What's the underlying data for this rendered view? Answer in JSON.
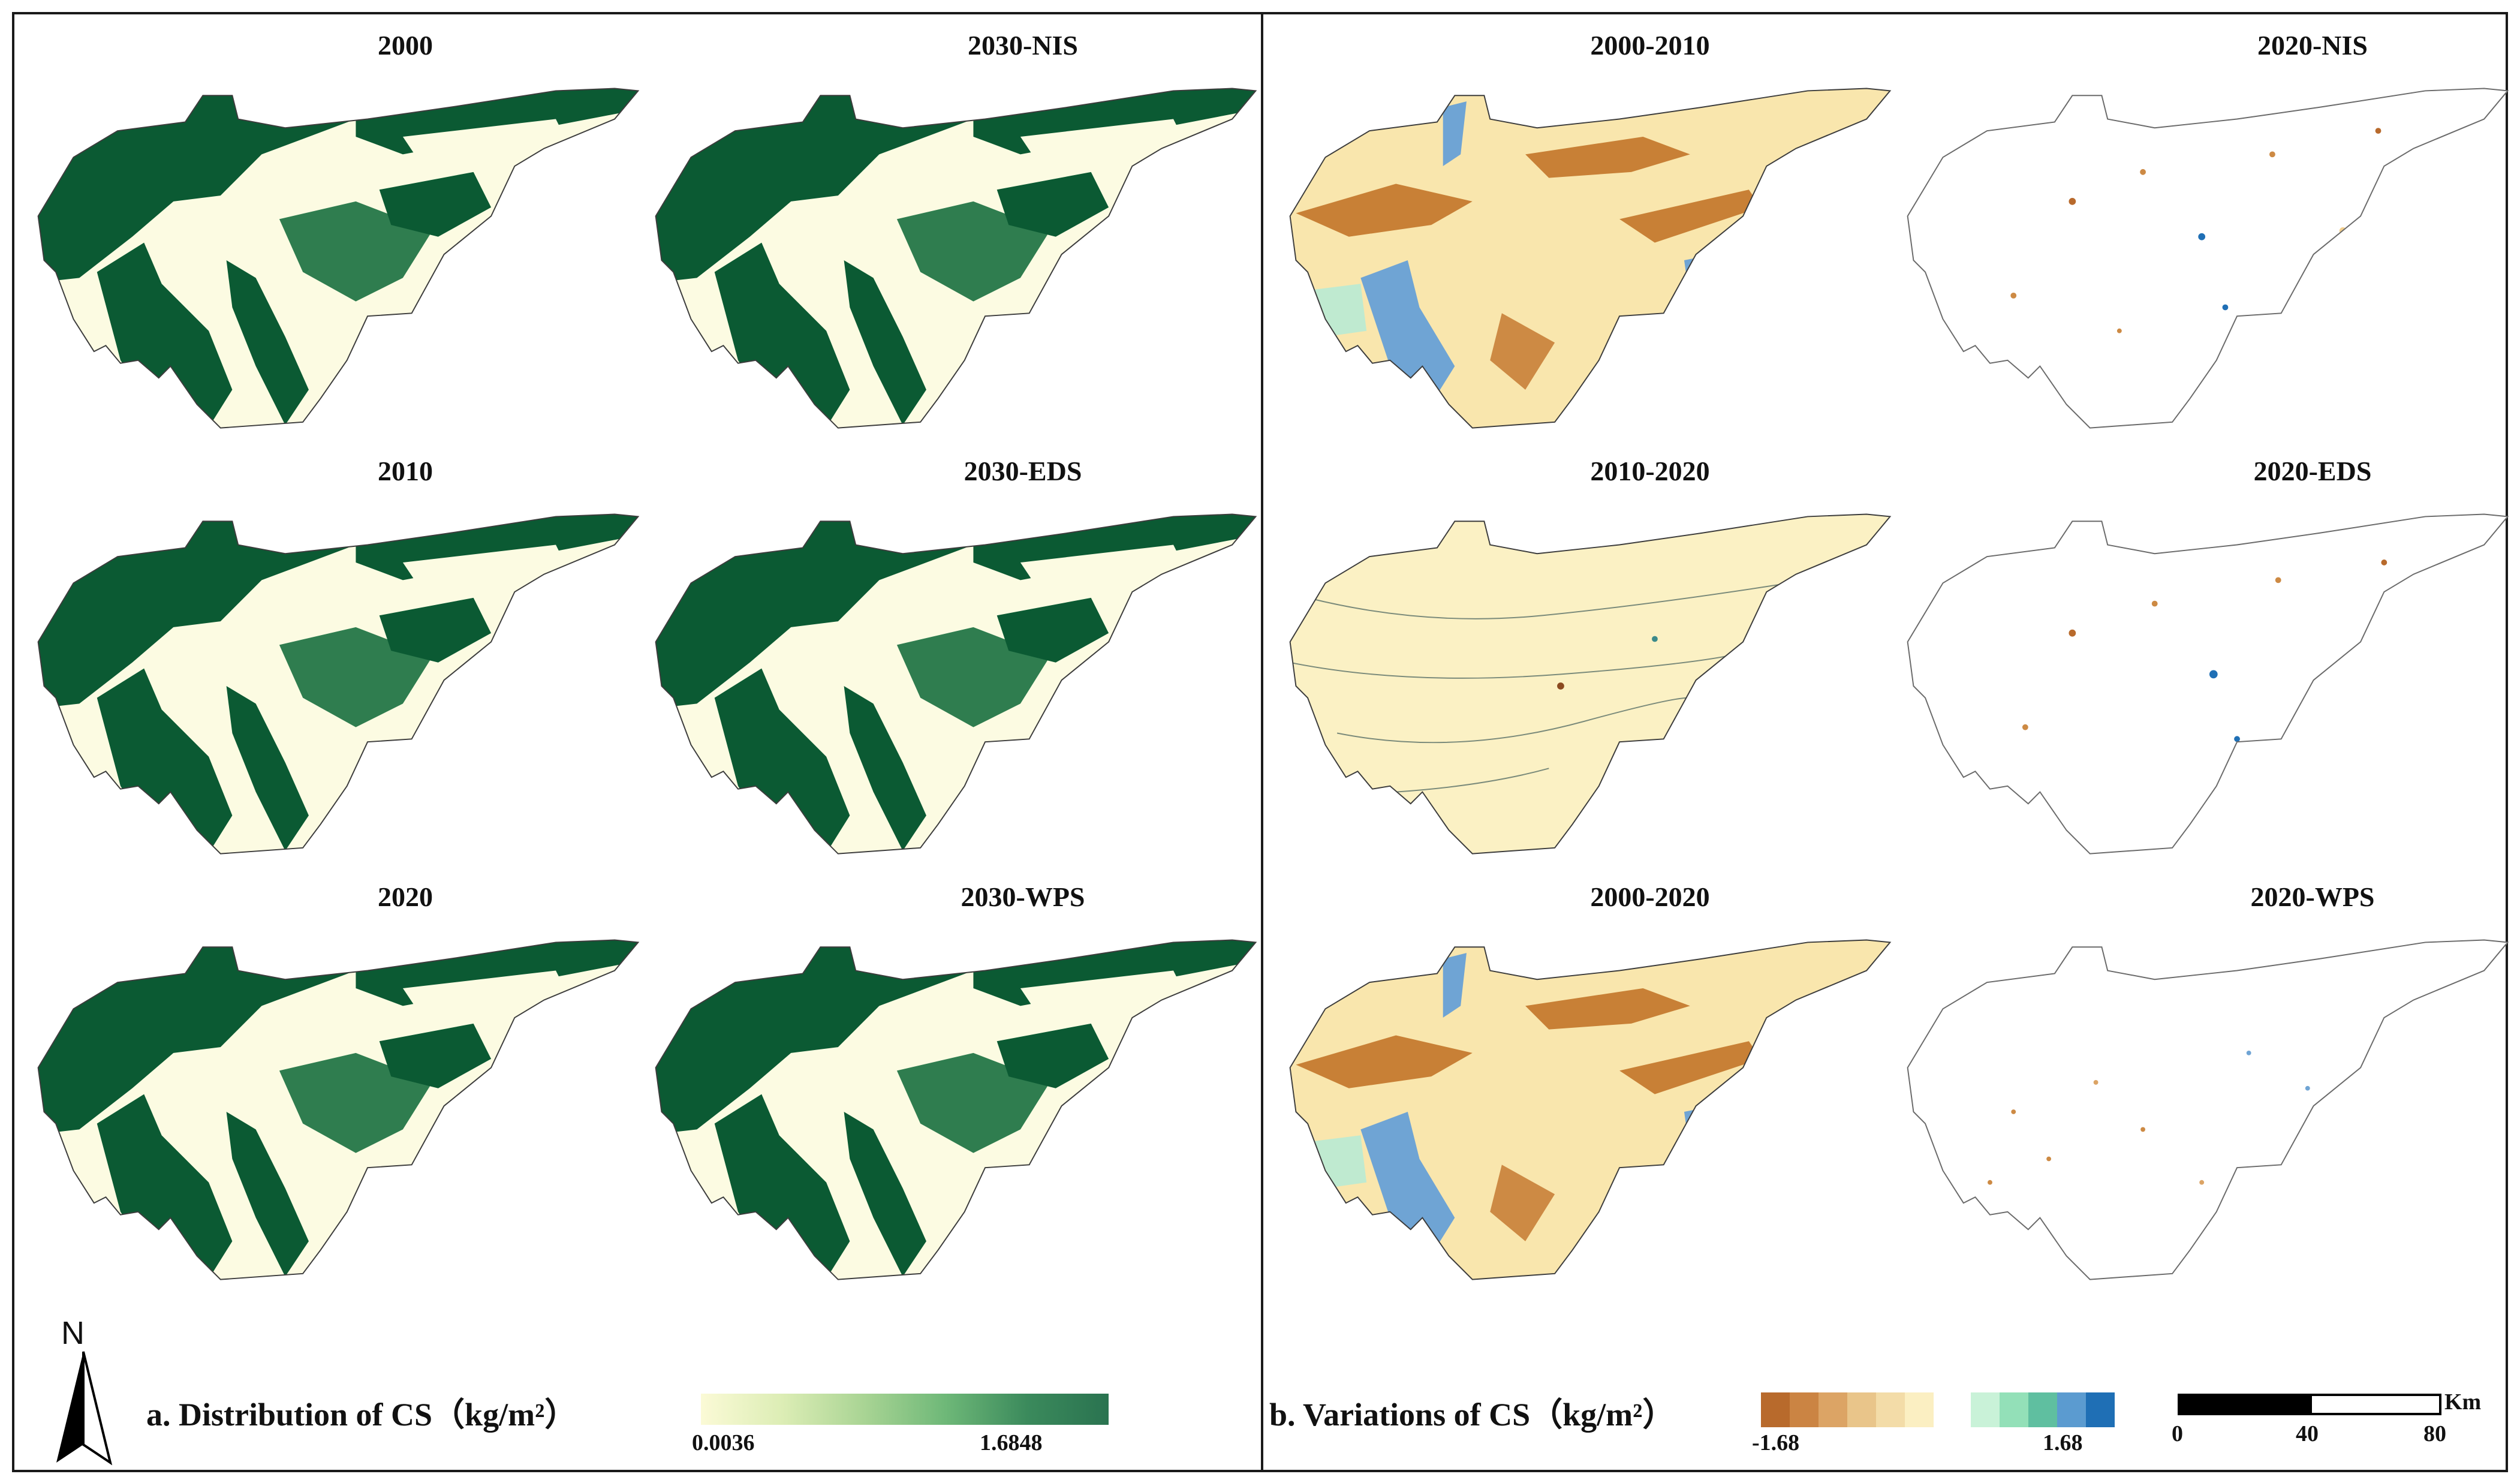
{
  "panel_a": {
    "maps": [
      {
        "title": "2000"
      },
      {
        "title": "2030-NIS"
      },
      {
        "title": "2010"
      },
      {
        "title": "2030-EDS"
      },
      {
        "title": "2020"
      },
      {
        "title": "2030-WPS"
      }
    ],
    "legend": {
      "title": "a. Distribution of CS（kg/m²）",
      "min_label": "0.0036",
      "max_label": "1.6848",
      "gradient_colors": [
        "#fbfad6",
        "#dcedb5",
        "#a9d494",
        "#6eb878",
        "#3b8a5c",
        "#2a7350"
      ]
    }
  },
  "panel_b": {
    "maps": [
      {
        "title": "2000-2010"
      },
      {
        "title": "2020-NIS"
      },
      {
        "title": "2010-2020"
      },
      {
        "title": "2020-EDS"
      },
      {
        "title": "2000-2020"
      },
      {
        "title": "2020-WPS"
      }
    ],
    "legend": {
      "title": "b. Variations of CS（kg/m²）",
      "min_label": "-1.68",
      "max_label": "1.68",
      "negative_colors": [
        "#b86a2c",
        "#cb8443",
        "#dca465",
        "#e9c58a",
        "#f3dca8",
        "#fbefc2"
      ],
      "positive_colors": [
        "#c9f2d8",
        "#93e0b8",
        "#5fbfa0",
        "#5b9bd0",
        "#1f6fb5"
      ]
    }
  },
  "scale_bar": {
    "labels": [
      "0",
      "40",
      "80"
    ],
    "unit": "Km"
  },
  "north_arrow": {
    "label": "N"
  }
}
